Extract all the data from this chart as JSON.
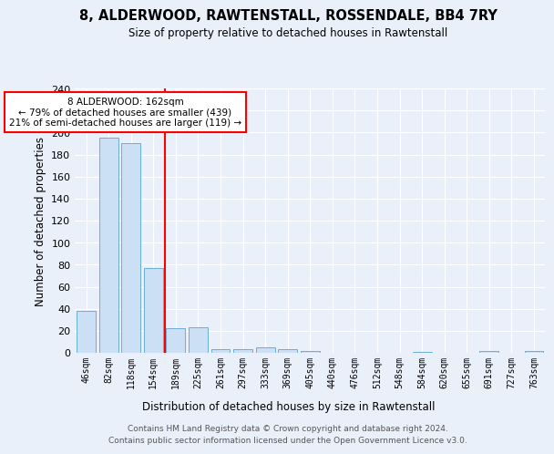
{
  "title": "8, ALDERWOOD, RAWTENSTALL, ROSSENDALE, BB4 7RY",
  "subtitle": "Size of property relative to detached houses in Rawtenstall",
  "xlabel": "Distribution of detached houses by size in Rawtenstall",
  "ylabel": "Number of detached properties",
  "bar_labels": [
    "46sqm",
    "82sqm",
    "118sqm",
    "154sqm",
    "189sqm",
    "225sqm",
    "261sqm",
    "297sqm",
    "333sqm",
    "369sqm",
    "405sqm",
    "440sqm",
    "476sqm",
    "512sqm",
    "548sqm",
    "584sqm",
    "620sqm",
    "655sqm",
    "691sqm",
    "727sqm",
    "763sqm"
  ],
  "bar_values": [
    38,
    195,
    190,
    77,
    22,
    23,
    3,
    3,
    5,
    3,
    2,
    0,
    0,
    0,
    0,
    1,
    0,
    0,
    2,
    0,
    2
  ],
  "bar_color": "#cce0f5",
  "bar_edge_color": "#6baed6",
  "ylim": [
    0,
    240
  ],
  "yticks": [
    0,
    20,
    40,
    60,
    80,
    100,
    120,
    140,
    160,
    180,
    200,
    220,
    240
  ],
  "red_line_x": 3.5,
  "annotation_text": "8 ALDERWOOD: 162sqm\n← 79% of detached houses are smaller (439)\n21% of semi-detached houses are larger (119) →",
  "annotation_box_color": "white",
  "annotation_box_edge": "red",
  "footer1": "Contains HM Land Registry data © Crown copyright and database right 2024.",
  "footer2": "Contains public sector information licensed under the Open Government Licence v3.0.",
  "background_color": "#eaf0fa",
  "grid_color": "white"
}
